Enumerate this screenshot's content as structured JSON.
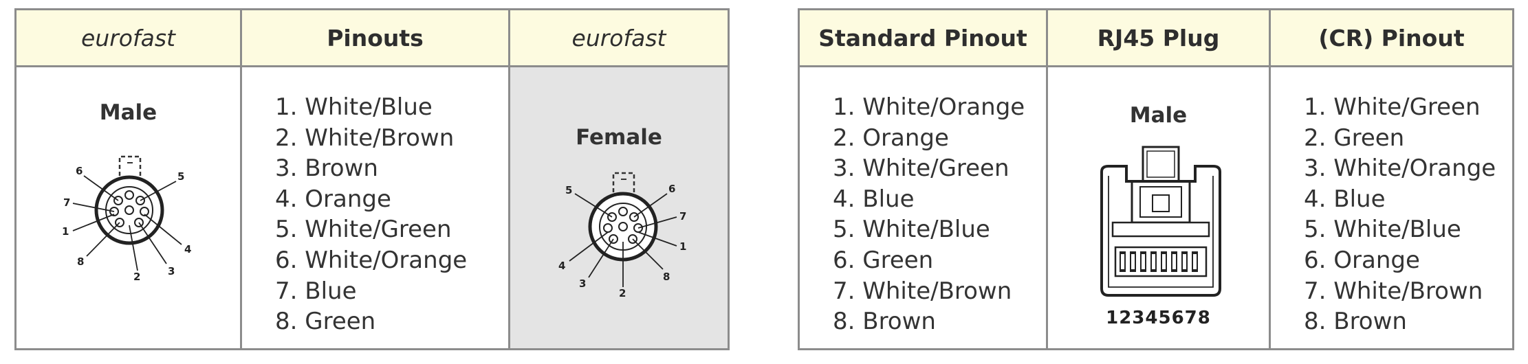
{
  "left_table": {
    "headers": [
      "eurofast",
      "Pinouts",
      "eurofast"
    ],
    "male_label": "Male",
    "female_label": "Female",
    "pinouts": [
      "1. White/Blue",
      "2. White/Brown",
      "3. Brown",
      "4. Orange",
      "5. White/Green",
      "6. White/Orange",
      "7. Blue",
      "8. Green"
    ],
    "male_pin_numbers": [
      "6",
      "5",
      "7",
      "1",
      "4",
      "8",
      "3",
      "2"
    ],
    "female_pin_numbers": [
      "5",
      "6",
      "7",
      "4",
      "1",
      "3",
      "8",
      "2"
    ]
  },
  "right_table": {
    "headers": [
      "Standard Pinout",
      "RJ45 Plug",
      "(CR) Pinout"
    ],
    "plug_label": "Male",
    "plug_numbers": "12345678",
    "standard_pinout": [
      "1. White/Orange",
      "2. Orange",
      "3. White/Green",
      "4. Blue",
      "5. White/Blue",
      "6. Green",
      "7. White/Brown",
      "8. Brown"
    ],
    "cr_pinout": [
      "1. White/Green",
      "2. Green",
      "3. White/Orange",
      "4. Blue",
      "5. White/Blue",
      "6. Orange",
      "7. White/Brown",
      "8. Brown"
    ]
  },
  "colors": {
    "header_bg": "#fdfbe0",
    "border": "#8c8c8c",
    "shaded_bg": "#e4e4e4"
  }
}
